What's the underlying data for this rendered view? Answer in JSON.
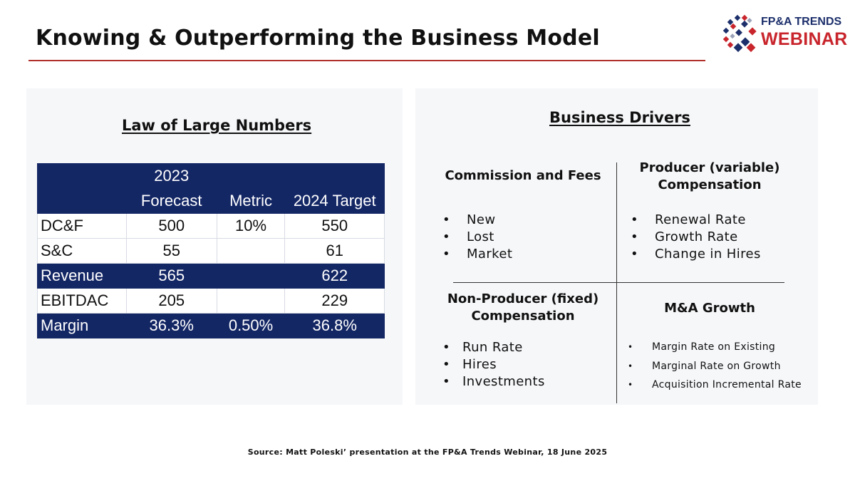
{
  "slide": {
    "title": "Knowing & Outperforming the Business Model",
    "source": "Source: Matt Poleski’ presentation at the FP&A Trends Webinar, 18 June 2025"
  },
  "logo": {
    "line1": "FP&A TRENDS",
    "line2": "WEBINAR"
  },
  "left_panel": {
    "heading": "Law of Large Numbers",
    "table": {
      "header": {
        "col1_line1": "2023",
        "col1_line2": "Forecast",
        "col2": "Metric",
        "col3": "2024 Target"
      },
      "rows": [
        {
          "label": "DC&F",
          "forecast": "500",
          "metric": "10%",
          "target": "550"
        },
        {
          "label": "S&C",
          "forecast": "55",
          "metric": "",
          "target": "61"
        },
        {
          "label": "Revenue",
          "forecast": "565",
          "metric": "",
          "target": "622"
        },
        {
          "label": "EBITDAC",
          "forecast": "205",
          "metric": "",
          "target": "229"
        },
        {
          "label": "Margin",
          "forecast": "36.3%",
          "metric": "0.50%",
          "target": "36.8%"
        }
      ]
    }
  },
  "right_panel": {
    "heading": "Business Drivers",
    "quadrants": {
      "top_left": {
        "title": "Commission and Fees",
        "items": [
          "New",
          "Lost",
          "Market"
        ]
      },
      "top_right": {
        "title_line1": "Producer (variable)",
        "title_line2": "Compensation",
        "items": [
          "Renewal Rate",
          "Growth Rate",
          "Change in Hires"
        ]
      },
      "bottom_left": {
        "title_line1": "Non-Producer (fixed)",
        "title_line2": "Compensation",
        "items": [
          "Run Rate",
          "Hires",
          "Investments"
        ]
      },
      "bottom_right": {
        "title": "M&A Growth",
        "items": [
          "Margin Rate on Existing",
          "Marginal Rate on Growth",
          "Acquisition Incremental Rate"
        ]
      }
    }
  },
  "colors": {
    "navy": "#142765",
    "accent_red": "#b0302c",
    "panel_bg": "#f6f7f9"
  }
}
